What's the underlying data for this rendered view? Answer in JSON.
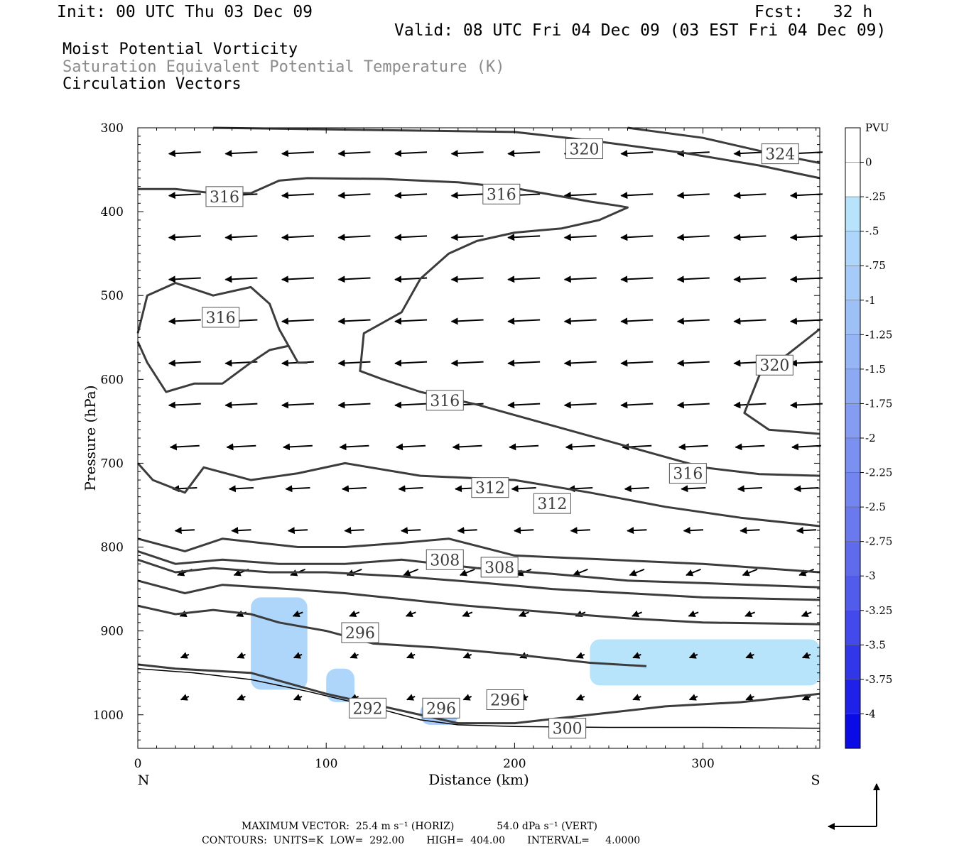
{
  "header": {
    "init": "Init: 00 UTC Thu 03 Dec 09",
    "fcst": "Fcst:   32 h",
    "valid": "Valid: 08 UTC Fri 04 Dec 09 (03 EST Fri 04 Dec 09)",
    "fields": [
      "Moist Potential Vorticity",
      "Saturation Equivalent Potential Temperature (K)",
      "Circulation Vectors"
    ]
  },
  "chart_data": {
    "type": "contour",
    "xlabel": "Distance (km)",
    "ylabel": "Pressure (hPa)",
    "xlim": [
      0,
      362
    ],
    "ylim": [
      1040,
      300
    ],
    "x_ticks": [
      0,
      100,
      200,
      300
    ],
    "y_ticks": [
      300,
      400,
      500,
      600,
      700,
      800,
      900,
      1000
    ],
    "x_end_labels": {
      "left": "N",
      "right": "S"
    },
    "contour_labels": [
      {
        "text": "316",
        "x": 46,
        "y": 382
      },
      {
        "text": "316",
        "x": 193,
        "y": 379
      },
      {
        "text": "320",
        "x": 237,
        "y": 325
      },
      {
        "text": "324",
        "x": 341,
        "y": 331
      },
      {
        "text": "316",
        "x": 44,
        "y": 526
      },
      {
        "text": "316",
        "x": 163,
        "y": 625
      },
      {
        "text": "320",
        "x": 338,
        "y": 583
      },
      {
        "text": "316",
        "x": 292,
        "y": 712
      },
      {
        "text": "312",
        "x": 187,
        "y": 729
      },
      {
        "text": "312",
        "x": 220,
        "y": 748
      },
      {
        "text": "308",
        "x": 163,
        "y": 815
      },
      {
        "text": "308",
        "x": 192,
        "y": 824
      },
      {
        "text": "296",
        "x": 118,
        "y": 902
      },
      {
        "text": "296",
        "x": 195,
        "y": 982
      },
      {
        "text": "292",
        "x": 122,
        "y": 992
      },
      {
        "text": "296",
        "x": 161,
        "y": 992
      },
      {
        "text": "300",
        "x": 228,
        "y": 1016
      }
    ],
    "contours": [
      [
        [
          0,
          373
        ],
        [
          20,
          373
        ],
        [
          40,
          378
        ],
        [
          60,
          378
        ],
        [
          75,
          363
        ],
        [
          90,
          360
        ],
        [
          130,
          361
        ],
        [
          170,
          365
        ],
        [
          200,
          372
        ],
        [
          240,
          388
        ],
        [
          255,
          393
        ],
        [
          260,
          395
        ],
        [
          255,
          400
        ],
        [
          245,
          410
        ],
        [
          225,
          420
        ],
        [
          200,
          425
        ],
        [
          180,
          435
        ],
        [
          165,
          450
        ],
        [
          150,
          480
        ],
        [
          140,
          520
        ],
        [
          120,
          545
        ],
        [
          118,
          590
        ],
        [
          130,
          600
        ],
        [
          150,
          615
        ],
        [
          180,
          630
        ],
        [
          220,
          655
        ],
        [
          260,
          680
        ],
        [
          300,
          705
        ],
        [
          330,
          713
        ],
        [
          362,
          715
        ]
      ],
      [
        [
          40,
          300
        ],
        [
          200,
          305
        ],
        [
          240,
          315
        ],
        [
          290,
          330
        ],
        [
          330,
          345
        ],
        [
          362,
          360
        ]
      ],
      [
        [
          260,
          300
        ],
        [
          300,
          312
        ],
        [
          335,
          330
        ],
        [
          362,
          342
        ]
      ],
      [
        [
          0,
          700
        ],
        [
          8,
          720
        ],
        [
          25,
          735
        ],
        [
          35,
          705
        ],
        [
          60,
          720
        ],
        [
          85,
          712
        ],
        [
          110,
          700
        ],
        [
          150,
          715
        ],
        [
          200,
          720
        ],
        [
          240,
          735
        ],
        [
          280,
          752
        ],
        [
          320,
          765
        ],
        [
          362,
          775
        ]
      ],
      [
        [
          0,
          790
        ],
        [
          25,
          805
        ],
        [
          45,
          790
        ],
        [
          65,
          795
        ],
        [
          85,
          800
        ],
        [
          110,
          800
        ],
        [
          140,
          795
        ],
        [
          165,
          790
        ],
        [
          200,
          810
        ],
        [
          250,
          815
        ],
        [
          300,
          820
        ],
        [
          362,
          830
        ]
      ],
      [
        [
          0,
          805
        ],
        [
          20,
          820
        ],
        [
          45,
          815
        ],
        [
          75,
          820
        ],
        [
          110,
          820
        ],
        [
          140,
          815
        ],
        [
          180,
          825
        ],
        [
          220,
          832
        ],
        [
          260,
          840
        ],
        [
          300,
          843
        ],
        [
          362,
          848
        ]
      ],
      [
        [
          0,
          815
        ],
        [
          20,
          830
        ],
        [
          40,
          825
        ],
        [
          70,
          830
        ],
        [
          100,
          830
        ],
        [
          140,
          835
        ],
        [
          180,
          842
        ],
        [
          220,
          850
        ],
        [
          260,
          855
        ],
        [
          300,
          860
        ],
        [
          362,
          863
        ]
      ],
      [
        [
          0,
          840
        ],
        [
          25,
          855
        ],
        [
          45,
          845
        ],
        [
          80,
          850
        ],
        [
          110,
          855
        ],
        [
          140,
          862
        ],
        [
          175,
          870
        ],
        [
          220,
          878
        ],
        [
          260,
          885
        ],
        [
          300,
          890
        ],
        [
          362,
          892
        ]
      ],
      [
        [
          0,
          870
        ],
        [
          20,
          880
        ],
        [
          40,
          875
        ],
        [
          60,
          880
        ],
        [
          75,
          890
        ],
        [
          100,
          900
        ],
        [
          125,
          915
        ],
        [
          160,
          920
        ],
        [
          200,
          928
        ],
        [
          240,
          938
        ],
        [
          270,
          942
        ]
      ],
      [
        [
          0,
          545
        ],
        [
          5,
          500
        ],
        [
          20,
          485
        ],
        [
          40,
          500
        ],
        [
          60,
          490
        ],
        [
          70,
          510
        ],
        [
          75,
          540
        ],
        [
          80,
          560
        ],
        [
          85,
          580
        ],
        [
          90,
          580
        ]
      ],
      [
        [
          0,
          555
        ],
        [
          5,
          580
        ],
        [
          15,
          615
        ],
        [
          30,
          605
        ],
        [
          45,
          605
        ],
        [
          60,
          580
        ],
        [
          70,
          565
        ],
        [
          80,
          560
        ]
      ],
      [
        [
          0,
          940
        ],
        [
          20,
          945
        ],
        [
          60,
          950
        ],
        [
          100,
          975
        ],
        [
          140,
          995
        ],
        [
          170,
          1010
        ],
        [
          200,
          1010
        ],
        [
          240,
          1000
        ],
        [
          280,
          990
        ],
        [
          320,
          985
        ],
        [
          362,
          975
        ]
      ],
      [
        [
          362,
          540
        ],
        [
          345,
          570
        ],
        [
          330,
          595
        ],
        [
          322,
          640
        ],
        [
          335,
          660
        ],
        [
          362,
          665
        ]
      ]
    ],
    "shaded_regions": [
      {
        "x": [
          60,
          90
        ],
        "p": [
          860,
          970
        ],
        "pvu": -0.5
      },
      {
        "x": [
          240,
          362
        ],
        "p": [
          910,
          965
        ],
        "pvu": -0.25
      },
      {
        "x": [
          100,
          115
        ],
        "p": [
          945,
          985
        ],
        "pvu": -0.5
      },
      {
        "x": [
          150,
          170
        ],
        "p": [
          985,
          1012
        ],
        "pvu": -0.75
      }
    ],
    "colorbar": {
      "title": "PVU",
      "labels": [
        "0",
        "-.25",
        "-.5",
        "-.75",
        "-1",
        "-1.25",
        "-1.5",
        "-1.75",
        "-2",
        "-2.25",
        "-2.5",
        "-2.75",
        "-3",
        "-3.25",
        "-3.5",
        "-3.75",
        "-4"
      ],
      "colors": [
        "#ffffff",
        "#ffffff",
        "#b7e3fb",
        "#aed6fa",
        "#a6cbf8",
        "#9dc0f7",
        "#95b5f5",
        "#8da9f4",
        "#849df2",
        "#7b91f1",
        "#7385ef",
        "#6b79ee",
        "#5f6aed",
        "#525ceb",
        "#4349ea",
        "#3236e9",
        "#1f20e8",
        "#0b0be6"
      ]
    },
    "footer": {
      "max_vector_label": "MAXIMUM VECTOR:",
      "horiz": "25.4 m s⁻¹ (HORIZ)",
      "vert": "54.0 dPa s⁻¹ (VERT)",
      "contours_line": "CONTOURS:  UNITS=K  LOW=  292.00       HIGH=  404.00       INTERVAL=     4.0000"
    }
  }
}
